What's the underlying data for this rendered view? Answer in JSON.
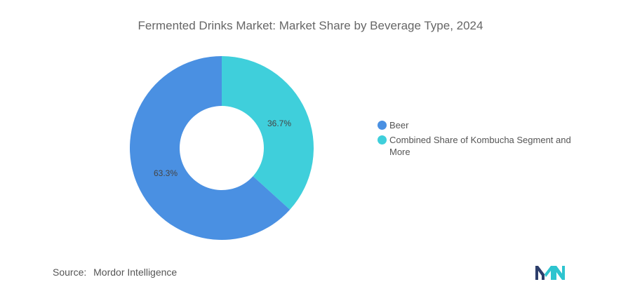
{
  "chart_data": {
    "type": "pie",
    "donut": true,
    "title": "Fermented Drinks Market: Market Share by Beverage Type, 2024",
    "slices": [
      {
        "label": "Beer",
        "value": 63.3,
        "display": "63.3%",
        "color": "#4a90e2"
      },
      {
        "label": "Combined Share of Kombucha Segment and More",
        "value": 36.7,
        "display": "36.7%",
        "color": "#3fcfdb"
      }
    ],
    "legend_position": "right"
  },
  "footer": {
    "source_label": "Source:",
    "source_value": "Mordor Intelligence"
  },
  "logo": {
    "icon": "mordor-intelligence-logo-icon",
    "colors": [
      "#2d3e6b",
      "#2ec4cf"
    ]
  }
}
